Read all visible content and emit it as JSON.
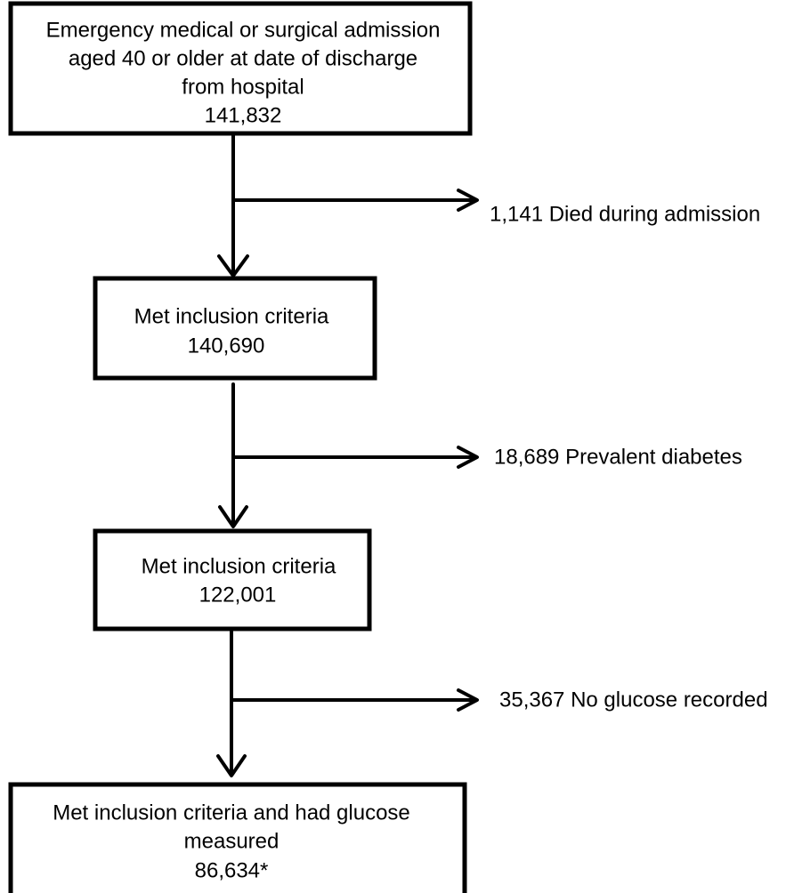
{
  "nodes": [
    {
      "lines": [
        "Emergency medical or surgical admission",
        "aged 40 or older at date of discharge",
        "from hospital"
      ],
      "count": "141,832"
    },
    {
      "lines": [
        "Met inclusion criteria"
      ],
      "count": "140,690"
    },
    {
      "lines": [
        "Met inclusion criteria"
      ],
      "count": "122,001"
    },
    {
      "lines": [
        "Met inclusion criteria and had glucose",
        "measured"
      ],
      "count": "86,634*"
    }
  ],
  "exclusions": [
    {
      "label": "1,141 Died during admission"
    },
    {
      "label": "18,689 Prevalent diabetes"
    },
    {
      "label": "35,367 No glucose recorded"
    }
  ]
}
